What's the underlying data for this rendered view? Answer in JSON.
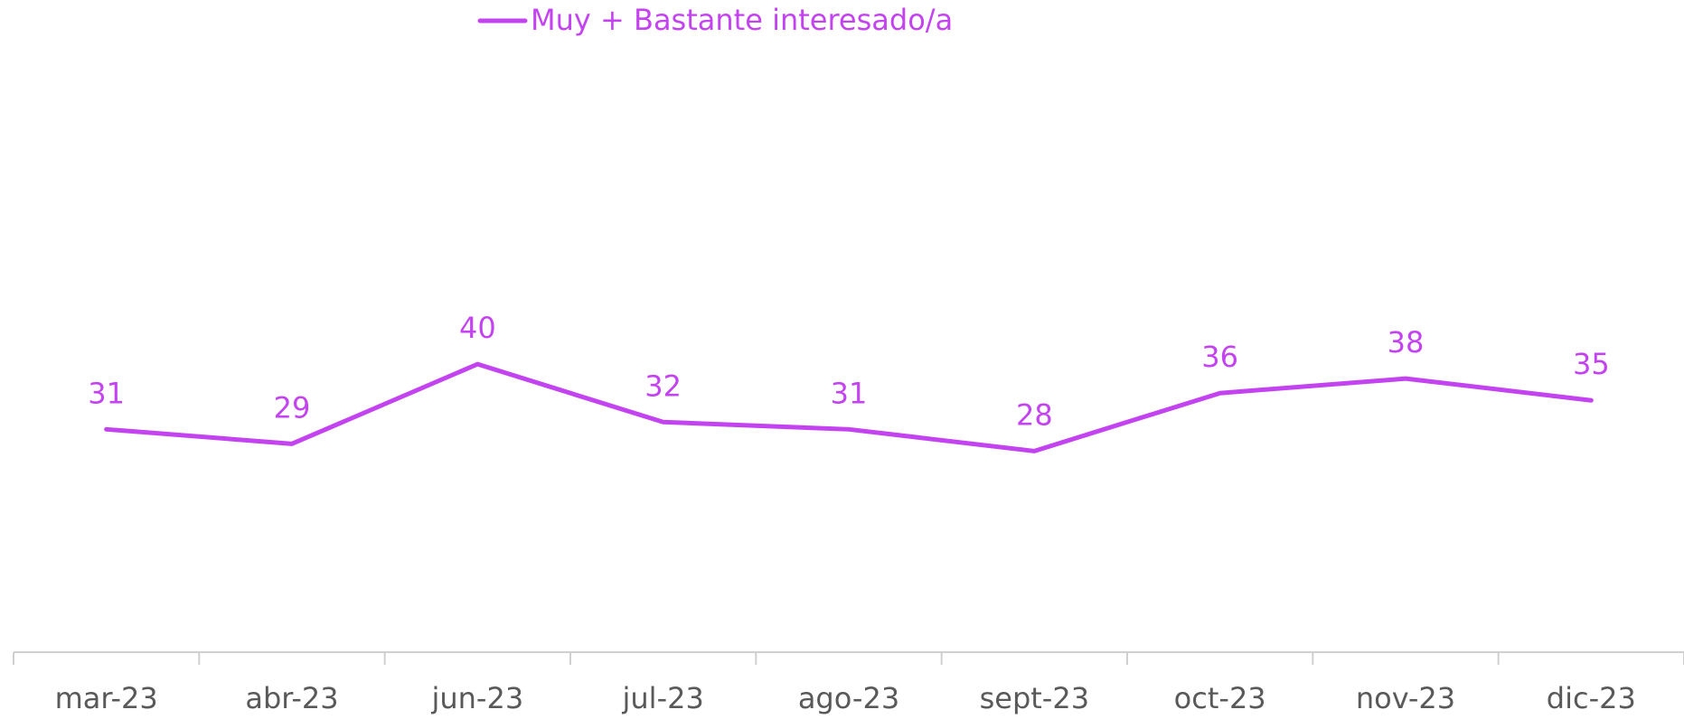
{
  "chart_data": {
    "type": "line",
    "categories": [
      "mar-23",
      "abr-23",
      "jun-23",
      "jul-23",
      "ago-23",
      "sept-23",
      "oct-23",
      "nov-23",
      "dic-23"
    ],
    "series": [
      {
        "name": "Muy + Bastante interesado/a",
        "color": "#c443f0",
        "values": [
          31,
          29,
          40,
          32,
          31,
          28,
          36,
          38,
          35
        ]
      }
    ],
    "ylim": [
      0,
      90
    ],
    "legend": "top"
  }
}
